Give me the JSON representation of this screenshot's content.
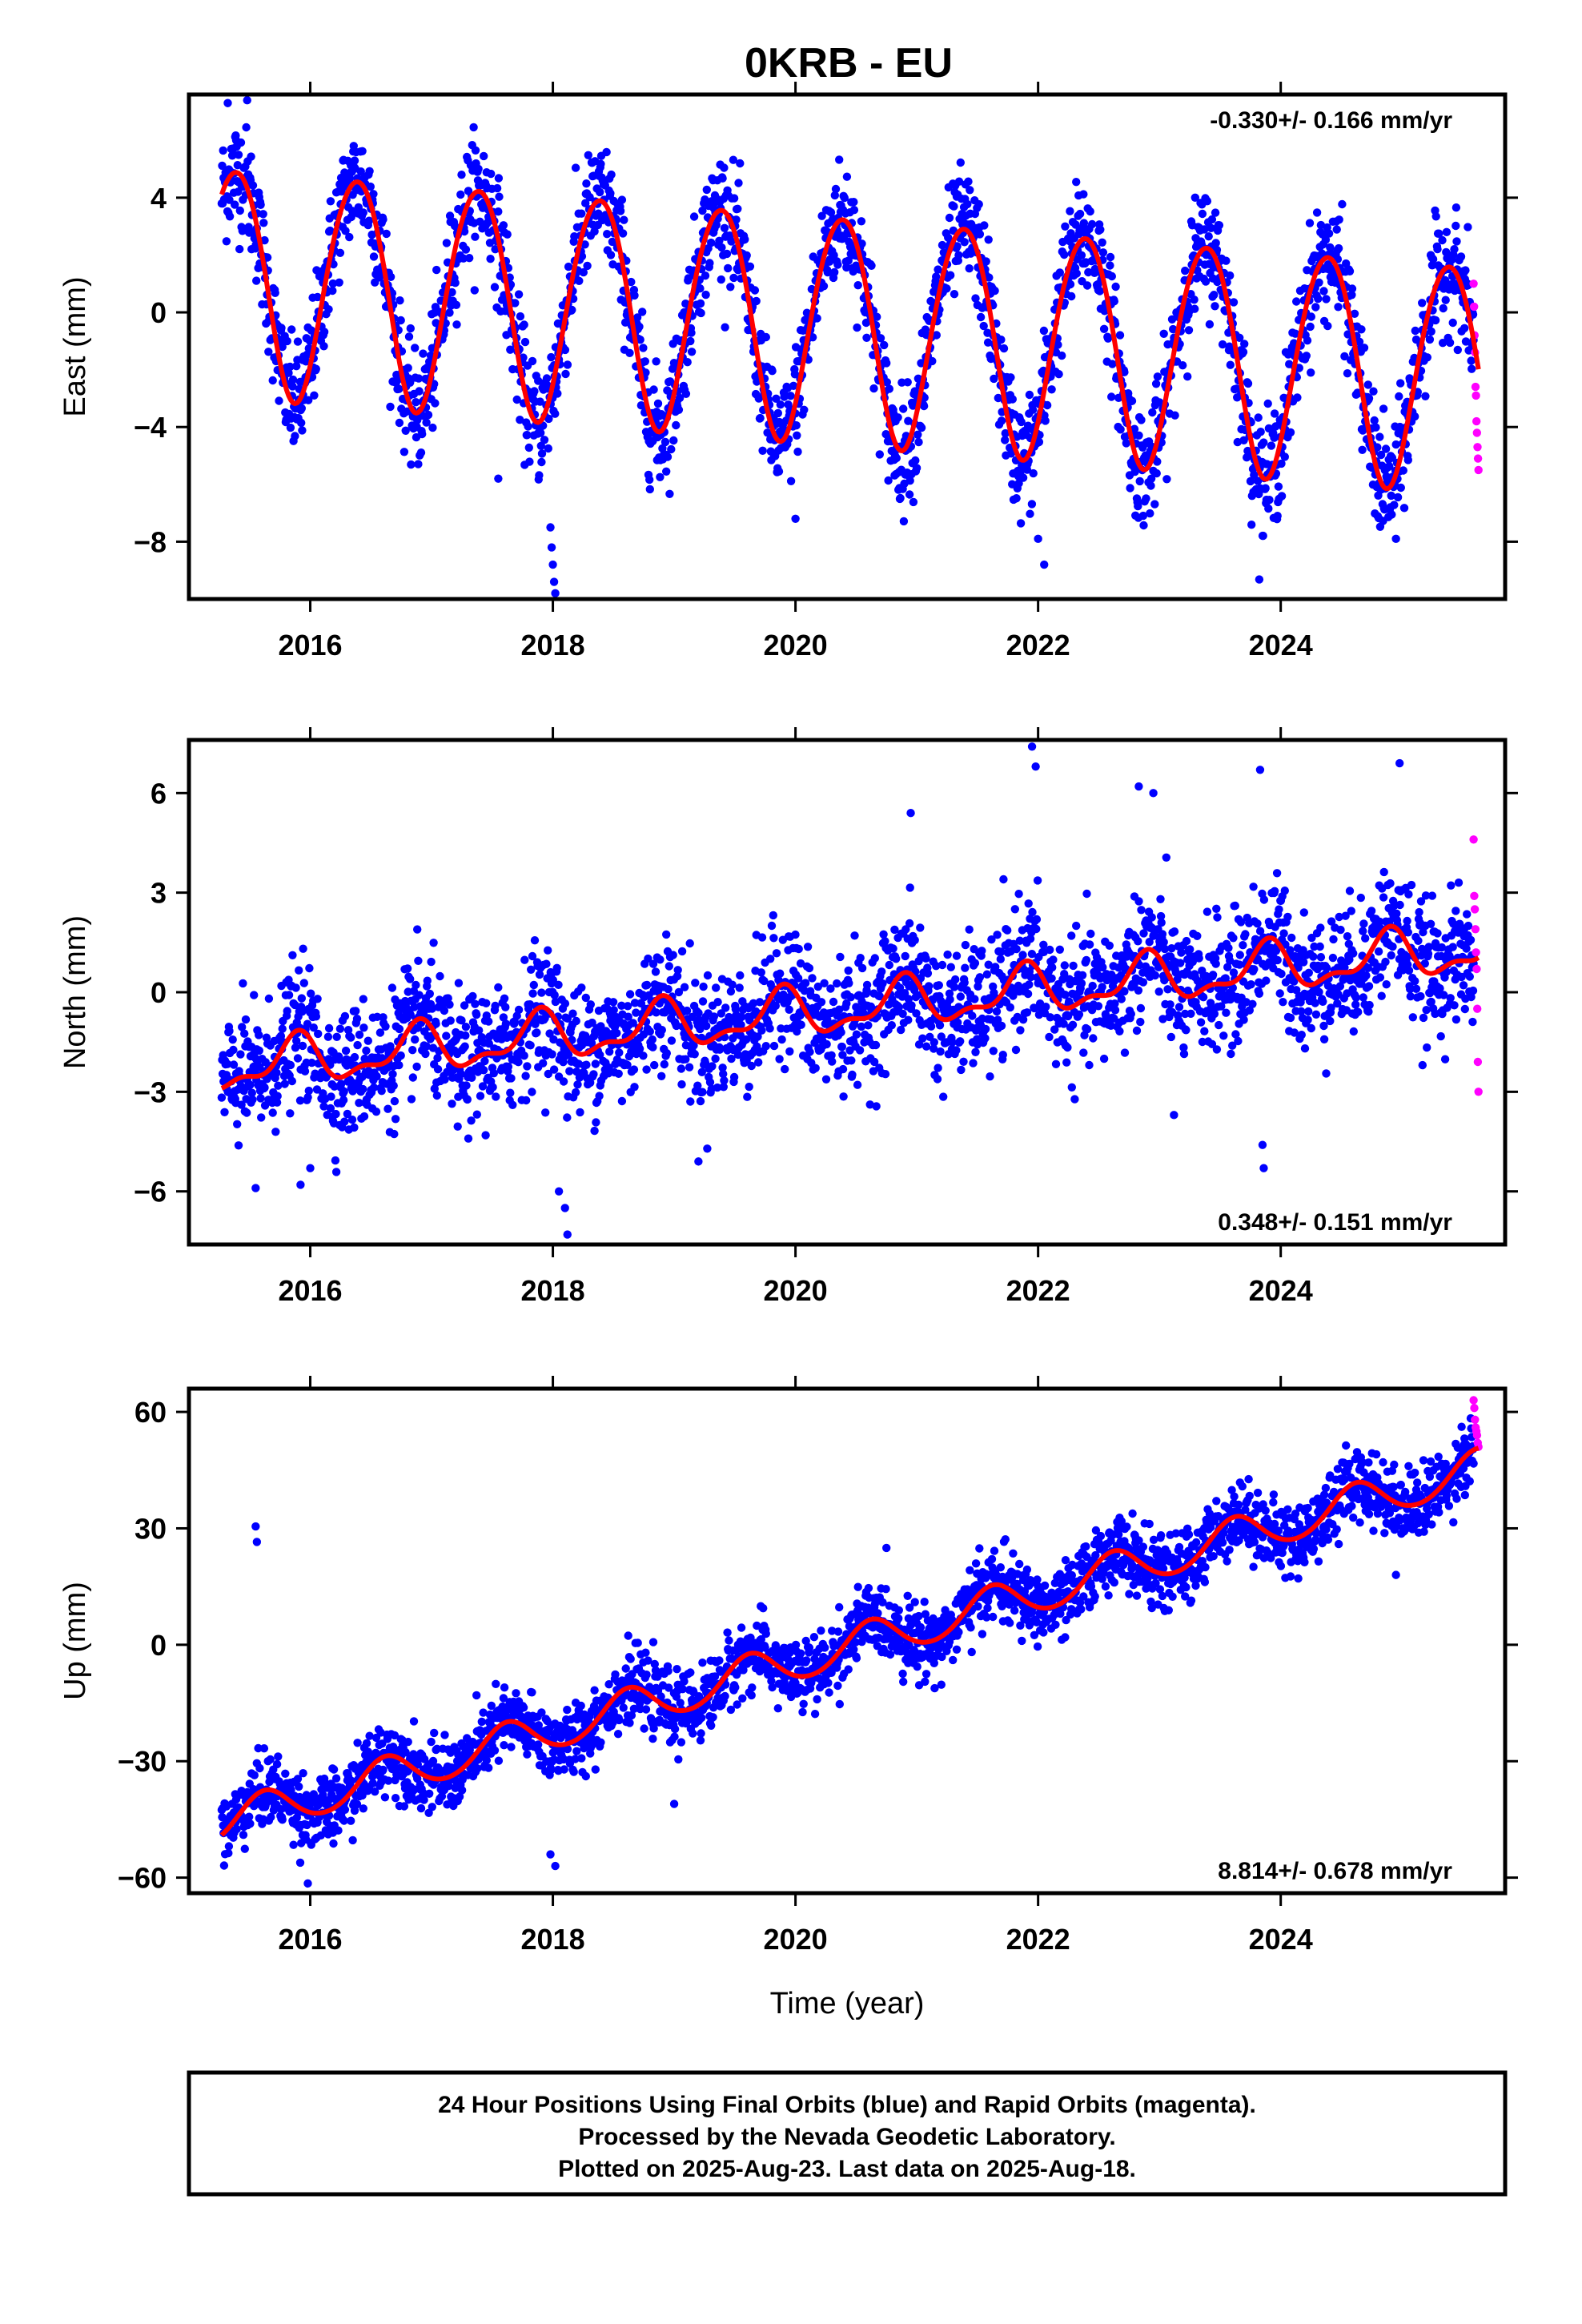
{
  "title": "0KRB - EU",
  "colors": {
    "final_orbits": "#0000ff",
    "rapid_orbits": "#ff00ff",
    "model_fit": "#ff0000",
    "frame": "#000000"
  },
  "footer": {
    "line1": "24 Hour Positions Using Final Orbits (blue) and Rapid Orbits (magenta).",
    "line2": "Processed by the Nevada Geodetic Laboratory.",
    "line3": "Plotted on 2025-Aug-23. Last data on 2025-Aug-18."
  },
  "chart_data": [
    {
      "type": "scatter",
      "component": "East",
      "ylabel": "East (mm)",
      "xlabel": "",
      "xlim": [
        2015.0,
        2025.85
      ],
      "ylim": [
        -10.0,
        7.6
      ],
      "xticks": [
        2016,
        2018,
        2020,
        2022,
        2024
      ],
      "xtick_labels": [
        "2016",
        "2018",
        "2020",
        "2022",
        "2024"
      ],
      "yticks": [
        -8,
        -4,
        0,
        4
      ],
      "ytick_labels": [
        "−8",
        "−4",
        "0",
        "4"
      ],
      "rate_text": "-0.330+/- 0.166 mm/yr",
      "rate_position": "top-right",
      "model": {
        "start": 2015.27,
        "end": 2025.63,
        "t0": 2015.27,
        "intercept": 1.2,
        "slope": -0.33,
        "annual_amp": 3.95,
        "annual_peak": 0.38,
        "semiannual_amp": 0.25,
        "semiannual_peak": 0.1
      },
      "final_orbits": {
        "start": 2015.27,
        "end": 2025.59,
        "noise": 1.0,
        "count": 2600
      },
      "rapid_orbits": {
        "start": 2025.59,
        "end": 2025.63,
        "values": [
          1.0,
          0.2,
          -0.8,
          -1.4,
          -2.6,
          -2.9,
          -3.8,
          -4.2,
          -4.7,
          -5.1,
          -5.5
        ]
      },
      "outliers": [
        {
          "x": 2017.98,
          "y": -7.5
        },
        {
          "x": 2017.99,
          "y": -8.2
        },
        {
          "x": 2018.0,
          "y": -8.8
        },
        {
          "x": 2018.01,
          "y": -9.4
        },
        {
          "x": 2018.02,
          "y": -9.8
        },
        {
          "x": 2017.55,
          "y": -5.8
        },
        {
          "x": 2022.0,
          "y": -7.9
        },
        {
          "x": 2022.05,
          "y": -8.8
        },
        {
          "x": 2024.95,
          "y": -7.9
        },
        {
          "x": 2020.0,
          "y": -7.2
        },
        {
          "x": 2015.32,
          "y": 7.3
        },
        {
          "x": 2015.48,
          "y": 7.4
        }
      ]
    },
    {
      "type": "scatter",
      "component": "North",
      "ylabel": "North (mm)",
      "xlabel": "",
      "xlim": [
        2015.0,
        2025.85
      ],
      "ylim": [
        -7.6,
        7.6
      ],
      "xticks": [
        2016,
        2018,
        2020,
        2022,
        2024
      ],
      "xtick_labels": [
        "2016",
        "2018",
        "2020",
        "2022",
        "2024"
      ],
      "yticks": [
        -6,
        -3,
        0,
        3,
        6
      ],
      "ytick_labels": [
        "−6",
        "−3",
        "0",
        "3",
        "6"
      ],
      "rate_text": "0.348+/- 0.151 mm/yr",
      "rate_position": "bottom-right",
      "model": {
        "start": 2015.27,
        "end": 2025.63,
        "t0": 2015.27,
        "intercept": -2.3,
        "slope": 0.348,
        "annual_amp": 0.65,
        "annual_peak": 0.88,
        "semiannual_amp": 0.3,
        "semiannual_peak": 0.42
      },
      "final_orbits": {
        "start": 2015.27,
        "end": 2025.59,
        "noise": 0.95,
        "count": 2600
      },
      "rapid_orbits": {
        "start": 2025.59,
        "end": 2025.63,
        "values": [
          4.6,
          2.9,
          2.5,
          1.9,
          1.2,
          0.7,
          -0.5,
          -2.1,
          -3.0
        ]
      },
      "outliers": [
        {
          "x": 2018.05,
          "y": -6.0
        },
        {
          "x": 2018.1,
          "y": -6.5
        },
        {
          "x": 2018.12,
          "y": -7.3
        },
        {
          "x": 2015.92,
          "y": -5.8
        },
        {
          "x": 2016.0,
          "y": -5.3
        },
        {
          "x": 2019.2,
          "y": -5.1
        },
        {
          "x": 2023.85,
          "y": -4.6
        },
        {
          "x": 2023.86,
          "y": -5.3
        },
        {
          "x": 2021.95,
          "y": 7.4
        },
        {
          "x": 2021.98,
          "y": 6.8
        },
        {
          "x": 2020.95,
          "y": 5.4
        },
        {
          "x": 2022.83,
          "y": 6.2
        },
        {
          "x": 2023.83,
          "y": 6.7
        },
        {
          "x": 2024.98,
          "y": 6.9
        },
        {
          "x": 2015.55,
          "y": -5.9
        },
        {
          "x": 2022.95,
          "y": 6.0
        },
        {
          "x": 2023.12,
          "y": -3.7
        }
      ]
    },
    {
      "type": "scatter",
      "component": "Up",
      "ylabel": "Up (mm)",
      "xlabel": "Time (year)",
      "xlim": [
        2015.0,
        2025.85
      ],
      "ylim": [
        -64,
        66
      ],
      "xticks": [
        2016,
        2018,
        2020,
        2022,
        2024
      ],
      "xtick_labels": [
        "2016",
        "2018",
        "2020",
        "2022",
        "2024"
      ],
      "yticks": [
        -60,
        -30,
        0,
        30,
        60
      ],
      "ytick_labels": [
        "−60",
        "−30",
        "0",
        "30",
        "60"
      ],
      "rate_text": "8.814+/- 0.678 mm/yr",
      "rate_position": "bottom-right",
      "model": {
        "start": 2015.27,
        "end": 2025.63,
        "t0": 2015.27,
        "intercept": -46.0,
        "slope": 8.81,
        "annual_amp": 5.0,
        "annual_peak": 0.62,
        "semiannual_amp": 0.4,
        "semiannual_peak": 0.12
      },
      "final_orbits": {
        "start": 2015.27,
        "end": 2025.59,
        "noise": 4.5,
        "count": 2600
      },
      "rapid_orbits": {
        "start": 2025.59,
        "end": 2025.63,
        "values": [
          63,
          61,
          58,
          56,
          55,
          54,
          52,
          51
        ]
      },
      "outliers": [
        {
          "x": 2015.55,
          "y": 30.5
        },
        {
          "x": 2015.56,
          "y": 26.5
        },
        {
          "x": 2015.98,
          "y": -61.5
        },
        {
          "x": 2018.02,
          "y": -57.0
        },
        {
          "x": 2017.98,
          "y": -54.0
        },
        {
          "x": 2019.0,
          "y": -41.0
        },
        {
          "x": 2024.95,
          "y": 18.0
        }
      ]
    }
  ]
}
